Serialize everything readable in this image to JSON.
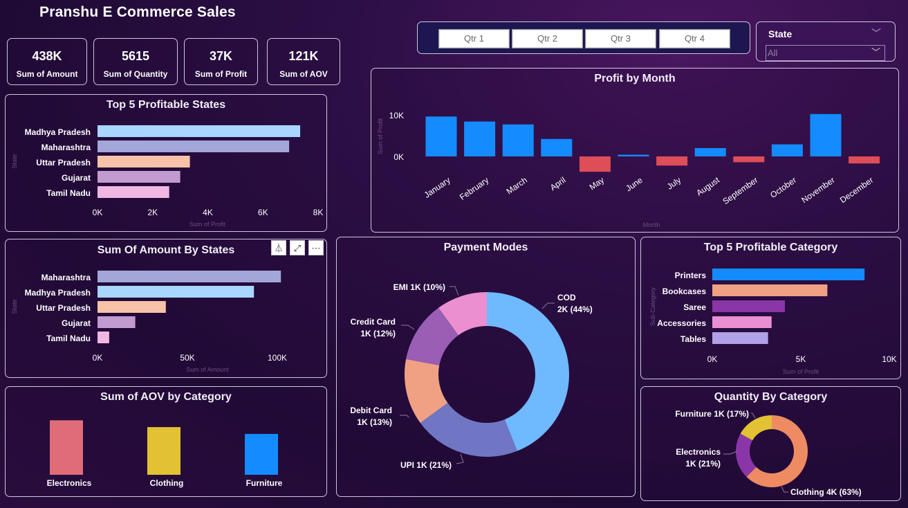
{
  "title": "Pranshu E Commerce Sales",
  "kpis": [
    {
      "value": "438K",
      "label": "Sum of Amount"
    },
    {
      "value": "5615",
      "label": "Sum of Quantity"
    },
    {
      "value": "37K",
      "label": "Sum of Profit"
    },
    {
      "value": "121K",
      "label": "Sum of AOV"
    }
  ],
  "quarters": [
    "Qtr 1",
    "Qtr 2",
    "Qtr 3",
    "Qtr 4"
  ],
  "state_filter": {
    "label": "State",
    "value": "All"
  },
  "icons": {
    "filter": "filter-icon",
    "focus": "focus-mode-icon",
    "more": "more-options-icon",
    "chevron": "chevron-down-icon"
  },
  "chart_data": [
    {
      "id": "top_states",
      "type": "bar",
      "orientation": "horizontal",
      "title": "Top 5 Profitable States",
      "xlabel": "Sum of Profit",
      "ylabel": "State",
      "categories": [
        "Madhya Pradesh",
        "Maharashtra",
        "Uttar Pradesh",
        "Gujarat",
        "Tamil Nadu"
      ],
      "values": [
        7350,
        6950,
        3350,
        3000,
        2600
      ],
      "colors": [
        "#a9d6ff",
        "#a3a6d8",
        "#f6c3a9",
        "#c29bd0",
        "#f0b7e2"
      ],
      "xticks": [
        "0K",
        "2K",
        "4K",
        "6K",
        "8K"
      ],
      "xlim": [
        0,
        8000
      ]
    },
    {
      "id": "amount_states",
      "type": "bar",
      "orientation": "horizontal",
      "title": "Sum Of Amount By States",
      "xlabel": "Sum of Amount",
      "ylabel": "State",
      "categories": [
        "Maharashtra",
        "Madhya Pradesh",
        "Uttar Pradesh",
        "Gujarat",
        "Tamil Nadu"
      ],
      "values": [
        102000,
        87000,
        38000,
        21000,
        6500
      ],
      "colors": [
        "#a3a6d8",
        "#a9d6ff",
        "#f6c3a9",
        "#c29bd0",
        "#f0b7e2"
      ],
      "xticks": [
        "0K",
        "50K",
        "100K"
      ],
      "xlim": [
        0,
        125000
      ]
    },
    {
      "id": "aov_category",
      "type": "bar",
      "title": "Sum of AOV by Category",
      "categories": [
        "Electronics",
        "Clothing",
        "Furniture"
      ],
      "values": [
        48000,
        42000,
        36000
      ],
      "colors": [
        "#e06c78",
        "#e2c233",
        "#148cff"
      ],
      "ylim": [
        0,
        50000
      ]
    },
    {
      "id": "profit_month",
      "type": "bar",
      "title": "Profit by Month",
      "xlabel": "Month",
      "ylabel": "Sum of Profit",
      "categories": [
        "January",
        "February",
        "March",
        "April",
        "May",
        "June",
        "July",
        "August",
        "September",
        "October",
        "November",
        "December"
      ],
      "values": [
        9600,
        8400,
        7700,
        4200,
        -3700,
        400,
        -2200,
        2000,
        -1400,
        2900,
        10200,
        -1700
      ],
      "positive_color": "#148cff",
      "negative_color": "#de4d58",
      "yticks": [
        "10K",
        "0K"
      ],
      "ylim": [
        -4000,
        11000
      ]
    },
    {
      "id": "payment_modes",
      "type": "pie",
      "donut": true,
      "title": "Payment Modes",
      "slices": [
        {
          "name": "COD",
          "label": "COD",
          "label2": "2K (44%)",
          "percent": 44,
          "color": "#6eb9ff"
        },
        {
          "name": "UPI",
          "label": "UPI 1K (21%)",
          "percent": 21,
          "color": "#7076c4"
        },
        {
          "name": "Debit Card",
          "label": "Debit Card",
          "label2": "1K (13%)",
          "percent": 13,
          "color": "#f0a184"
        },
        {
          "name": "Credit Card",
          "label": "Credit Card",
          "label2": "1K (12%)",
          "percent": 12,
          "color": "#9a5eb4"
        },
        {
          "name": "EMI",
          "label": "EMI 1K (10%)",
          "percent": 10,
          "color": "#eb8fd0"
        }
      ]
    },
    {
      "id": "top_category",
      "type": "bar",
      "orientation": "horizontal",
      "title": "Top 5 Profitable Category",
      "xlabel": "Sum of Profit",
      "ylabel": "Sub-Category",
      "categories": [
        "Printers",
        "Bookcases",
        "Saree",
        "Accessories",
        "Tables"
      ],
      "values": [
        8600,
        6500,
        4100,
        3350,
        3150
      ],
      "colors": [
        "#148cff",
        "#f0a184",
        "#8a35a8",
        "#ea8fd2",
        "#b2a0e8"
      ],
      "xticks": [
        "0K",
        "5K",
        "10K"
      ],
      "xlim": [
        0,
        10000
      ]
    },
    {
      "id": "qty_category",
      "type": "pie",
      "donut": true,
      "title": "Quantity By Category",
      "slices": [
        {
          "name": "Clothing",
          "label": "Clothing 4K (63%)",
          "percent": 63,
          "color": "#ee8b62"
        },
        {
          "name": "Electronics",
          "label": "Electronics",
          "label2": "1K (21%)",
          "percent": 21,
          "color": "#8a35a8"
        },
        {
          "name": "Furniture",
          "label": "Furniture 1K (17%)",
          "percent": 17,
          "color": "#e2c233"
        }
      ]
    }
  ]
}
